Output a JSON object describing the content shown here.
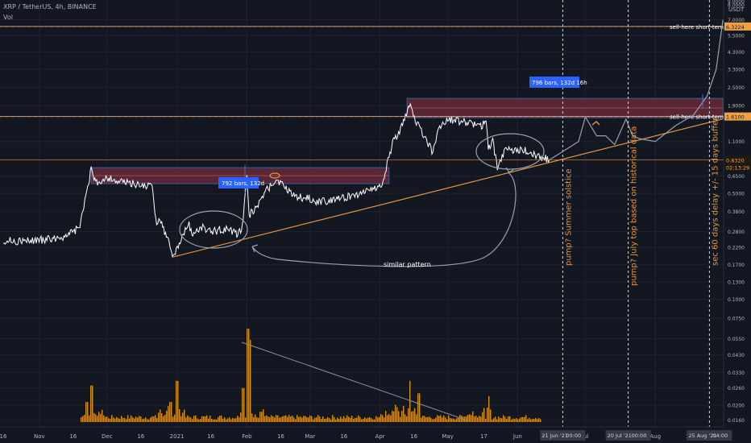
{
  "header": {
    "symbol_line": "XRP / TetherUS, 4h, BINANCE",
    "volume_label": "Vol",
    "currency": "USDT"
  },
  "price_axis": {
    "ticks": [
      "7.0000",
      "5.5000",
      "4.3000",
      "3.3000",
      "2.5000",
      "1.9000",
      "1.1000",
      "0.6500",
      "0.5000",
      "0.3800",
      "0.2800",
      "0.2200",
      "0.1700",
      "0.1300",
      "0.1000",
      "0.0750",
      "0.0550",
      "0.0430",
      "0.0330",
      "0.0260",
      "0.0200",
      "0.0160"
    ],
    "top_ticks": [
      "9.0000",
      "8.0000"
    ]
  },
  "price_tags": {
    "sell_high": "6.3224",
    "sell_mid": "1.6100",
    "current": "0.8320",
    "countdown": "02:13:29"
  },
  "time_axis": {
    "labels": [
      "16",
      "Nov",
      "16",
      "Dec",
      "16",
      "2021",
      "16",
      "Feb",
      "16",
      "Mar",
      "16",
      "Apr",
      "16",
      "May",
      "17",
      "Jun",
      "16",
      "Jul",
      "16",
      "Aug",
      "16"
    ],
    "markers": [
      "21 Jun '21",
      "00:00",
      "20 Jul '21",
      "00:00",
      "25 Aug '21",
      "04:00"
    ]
  },
  "annotations": {
    "sell_high_label": "sell-here short-term",
    "sell_mid_label": "sell-here short-term",
    "measure_1": "792 bars, 132d",
    "measure_2": "796 bars, 132d 16h",
    "similar_pattern": "similar pattern",
    "vline_1": "pump? Summer solstice",
    "vline_2": "pump? July top based on historical data",
    "vline_3": "sec 60 days delay +/- 15 days buffer"
  },
  "colors": {
    "background": "#131722",
    "candle": "#ffffff",
    "volume": "#f7a600",
    "orange_line": "#e8943a",
    "range_box": "#6b2a38",
    "measure_tag": "#2962ff"
  },
  "chart_data": {
    "type": "line",
    "title": "XRP / TetherUS, 4h, BINANCE",
    "ylabel": "USDT",
    "yscale": "log",
    "ylim": [
      0.0155,
      9.0
    ],
    "x_range": [
      "2020-10-16",
      "2021-09-01"
    ],
    "price_series": [
      {
        "x": "2020-10-16",
        "y": 0.245
      },
      {
        "x": "2020-10-26",
        "y": 0.242
      },
      {
        "x": "2020-11-06",
        "y": 0.25
      },
      {
        "x": "2020-11-14",
        "y": 0.265
      },
      {
        "x": "2020-11-19",
        "y": 0.3
      },
      {
        "x": "2020-11-22",
        "y": 0.52
      },
      {
        "x": "2020-11-24",
        "y": 0.72
      },
      {
        "x": "2020-11-26",
        "y": 0.58
      },
      {
        "x": "2020-12-01",
        "y": 0.64
      },
      {
        "x": "2020-12-06",
        "y": 0.6
      },
      {
        "x": "2020-12-12",
        "y": 0.58
      },
      {
        "x": "2020-12-18",
        "y": 0.56
      },
      {
        "x": "2020-12-21",
        "y": 0.56
      },
      {
        "x": "2020-12-23",
        "y": 0.3
      },
      {
        "x": "2020-12-24",
        "y": 0.36
      },
      {
        "x": "2020-12-29",
        "y": 0.22
      },
      {
        "x": "2020-12-30",
        "y": 0.19
      },
      {
        "x": "2021-01-02",
        "y": 0.23
      },
      {
        "x": "2021-01-06",
        "y": 0.32
      },
      {
        "x": "2021-01-08",
        "y": 0.27
      },
      {
        "x": "2021-01-12",
        "y": 0.3
      },
      {
        "x": "2021-01-16",
        "y": 0.28
      },
      {
        "x": "2021-01-22",
        "y": 0.29
      },
      {
        "x": "2021-01-28",
        "y": 0.27
      },
      {
        "x": "2021-01-30",
        "y": 0.3
      },
      {
        "x": "2021-02-01",
        "y": 0.64
      },
      {
        "x": "2021-02-02",
        "y": 0.36
      },
      {
        "x": "2021-02-06",
        "y": 0.42
      },
      {
        "x": "2021-02-10",
        "y": 0.53
      },
      {
        "x": "2021-02-14",
        "y": 0.62
      },
      {
        "x": "2021-02-18",
        "y": 0.54
      },
      {
        "x": "2021-02-23",
        "y": 0.48
      },
      {
        "x": "2021-03-01",
        "y": 0.46
      },
      {
        "x": "2021-03-05",
        "y": 0.44
      },
      {
        "x": "2021-03-12",
        "y": 0.46
      },
      {
        "x": "2021-03-20",
        "y": 0.48
      },
      {
        "x": "2021-03-28",
        "y": 0.54
      },
      {
        "x": "2021-04-02",
        "y": 0.56
      },
      {
        "x": "2021-04-05",
        "y": 0.9
      },
      {
        "x": "2021-04-07",
        "y": 1.1
      },
      {
        "x": "2021-04-11",
        "y": 1.4
      },
      {
        "x": "2021-04-14",
        "y": 1.9
      },
      {
        "x": "2021-04-18",
        "y": 1.4
      },
      {
        "x": "2021-04-22",
        "y": 1.1
      },
      {
        "x": "2021-04-24",
        "y": 0.95
      },
      {
        "x": "2021-04-27",
        "y": 1.3
      },
      {
        "x": "2021-05-01",
        "y": 1.55
      },
      {
        "x": "2021-05-07",
        "y": 1.5
      },
      {
        "x": "2021-05-12",
        "y": 1.45
      },
      {
        "x": "2021-05-16",
        "y": 1.4
      },
      {
        "x": "2021-05-18",
        "y": 1.55
      },
      {
        "x": "2021-05-19",
        "y": 1.0
      },
      {
        "x": "2021-05-21",
        "y": 1.1
      },
      {
        "x": "2021-05-23",
        "y": 0.74
      },
      {
        "x": "2021-05-26",
        "y": 0.95
      },
      {
        "x": "2021-06-01",
        "y": 0.98
      },
      {
        "x": "2021-06-06",
        "y": 0.94
      },
      {
        "x": "2021-06-10",
        "y": 0.88
      },
      {
        "x": "2021-06-13",
        "y": 0.86
      },
      {
        "x": "2021-06-15",
        "y": 0.832
      }
    ],
    "volume_series": [
      {
        "x": "2020-11-22",
        "y": 0.021
      },
      {
        "x": "2020-11-24",
        "y": 0.027
      },
      {
        "x": "2020-12-29",
        "y": 0.021
      },
      {
        "x": "2021-01-01",
        "y": 0.029
      },
      {
        "x": "2021-01-30",
        "y": 0.026
      },
      {
        "x": "2021-02-01",
        "y": 0.064
      },
      {
        "x": "2021-02-02",
        "y": 0.054
      },
      {
        "x": "2021-04-14",
        "y": 0.029
      },
      {
        "x": "2021-04-18",
        "y": 0.024
      },
      {
        "x": "2021-05-19",
        "y": 0.023
      }
    ],
    "levels": [
      {
        "label": "sell-here short-term",
        "value": 6.3224
      },
      {
        "label": "sell-here short-term",
        "value": 1.61
      },
      {
        "label": "current",
        "value": 0.832
      }
    ],
    "resistance_boxes": [
      {
        "from": "2020-11-24",
        "to": "2021-04-05",
        "low": 0.58,
        "high": 0.74
      },
      {
        "from": "2021-04-13",
        "to": "2021-08-31",
        "low": 1.58,
        "high": 2.12
      }
    ],
    "trendline": {
      "from": {
        "x": "2020-12-30",
        "y": 0.19
      },
      "to": {
        "x": "2021-08-31",
        "y": 1.55
      }
    },
    "projection": [
      {
        "x": "2021-06-15",
        "y": 0.832
      },
      {
        "x": "2021-06-28",
        "y": 1.1
      },
      {
        "x": "2021-07-01",
        "y": 1.6
      },
      {
        "x": "2021-07-06",
        "y": 1.2
      },
      {
        "x": "2021-07-10",
        "y": 1.2
      },
      {
        "x": "2021-07-14",
        "y": 1.05
      },
      {
        "x": "2021-07-19",
        "y": 1.55
      },
      {
        "x": "2021-07-22",
        "y": 1.2
      },
      {
        "x": "2021-07-25",
        "y": 1.15
      },
      {
        "x": "2021-08-01",
        "y": 1.1
      },
      {
        "x": "2021-08-10",
        "y": 1.4
      },
      {
        "x": "2021-08-18",
        "y": 1.65
      },
      {
        "x": "2021-08-24",
        "y": 2.2
      },
      {
        "x": "2021-08-28",
        "y": 3.3
      },
      {
        "x": "2021-08-31",
        "y": 7.0
      }
    ],
    "vertical_markers": [
      "2021-06-21",
      "2021-07-20",
      "2021-08-25"
    ],
    "grid": true,
    "legend": "none"
  }
}
